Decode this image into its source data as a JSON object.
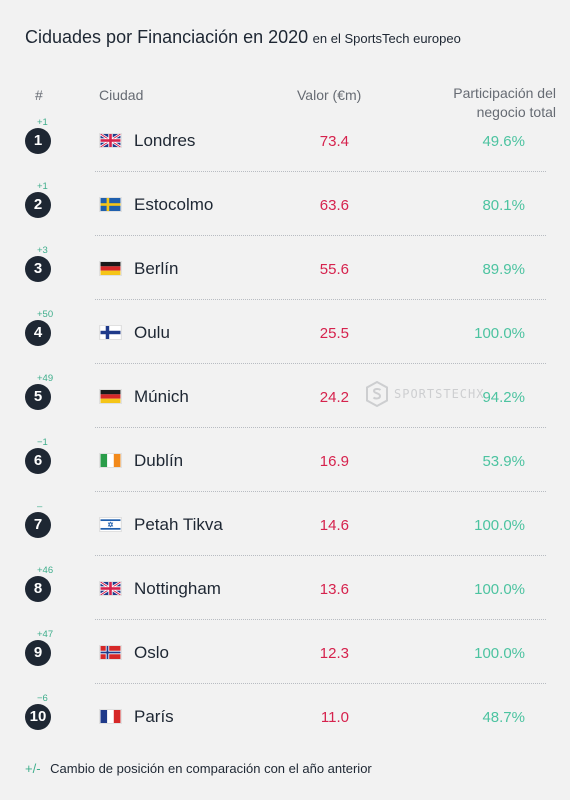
{
  "title": {
    "main": "Ciduades por Financiación en 2020",
    "sub": "en el SportsTech europeo"
  },
  "headers": {
    "rank": "#",
    "city": "Ciudad",
    "value": "Valor  (€m)",
    "share_line1": "Participación del",
    "share_line2": "negocio total"
  },
  "watermark": "SPORTSTECHX",
  "footnote": {
    "symbol": "+/-",
    "text": "Cambio de posición en comparación con el año anterior"
  },
  "colors": {
    "badge": "#1e2733",
    "value": "#d6224d",
    "share": "#4cc3a0",
    "change": "#3fae8c"
  },
  "chart_data": {
    "type": "table",
    "columns": [
      "#",
      "Ciudad",
      "Valor  (€m)",
      "Participación del negocio total"
    ],
    "rows": [
      {
        "rank": "1",
        "change": "+1",
        "flag": "uk",
        "city": "Londres",
        "value": "73.4",
        "share": "49.6%"
      },
      {
        "rank": "2",
        "change": "+1",
        "flag": "sweden",
        "city": "Estocolmo",
        "value": "63.6",
        "share": "80.1%"
      },
      {
        "rank": "3",
        "change": "+3",
        "flag": "germany",
        "city": "Berlín",
        "value": "55.6",
        "share": "89.9%"
      },
      {
        "rank": "4",
        "change": "+50",
        "flag": "finland",
        "city": "Oulu",
        "value": "25.5",
        "share": "100.0%"
      },
      {
        "rank": "5",
        "change": "+49",
        "flag": "germany",
        "city": "Múnich",
        "value": "24.2",
        "share": "94.2%"
      },
      {
        "rank": "6",
        "change": "−1",
        "flag": "ireland",
        "city": "Dublín",
        "value": "16.9",
        "share": "53.9%"
      },
      {
        "rank": "7",
        "change": "–",
        "flag": "israel",
        "city": "Petah Tikva",
        "value": "14.6",
        "share": "100.0%"
      },
      {
        "rank": "8",
        "change": "+46",
        "flag": "uk",
        "city": "Nottingham",
        "value": "13.6",
        "share": "100.0%"
      },
      {
        "rank": "9",
        "change": "+47",
        "flag": "norway",
        "city": "Oslo",
        "value": "12.3",
        "share": "100.0%"
      },
      {
        "rank": "10",
        "change": "−6",
        "flag": "france",
        "city": "París",
        "value": "11.0",
        "share": "48.7%"
      }
    ]
  }
}
